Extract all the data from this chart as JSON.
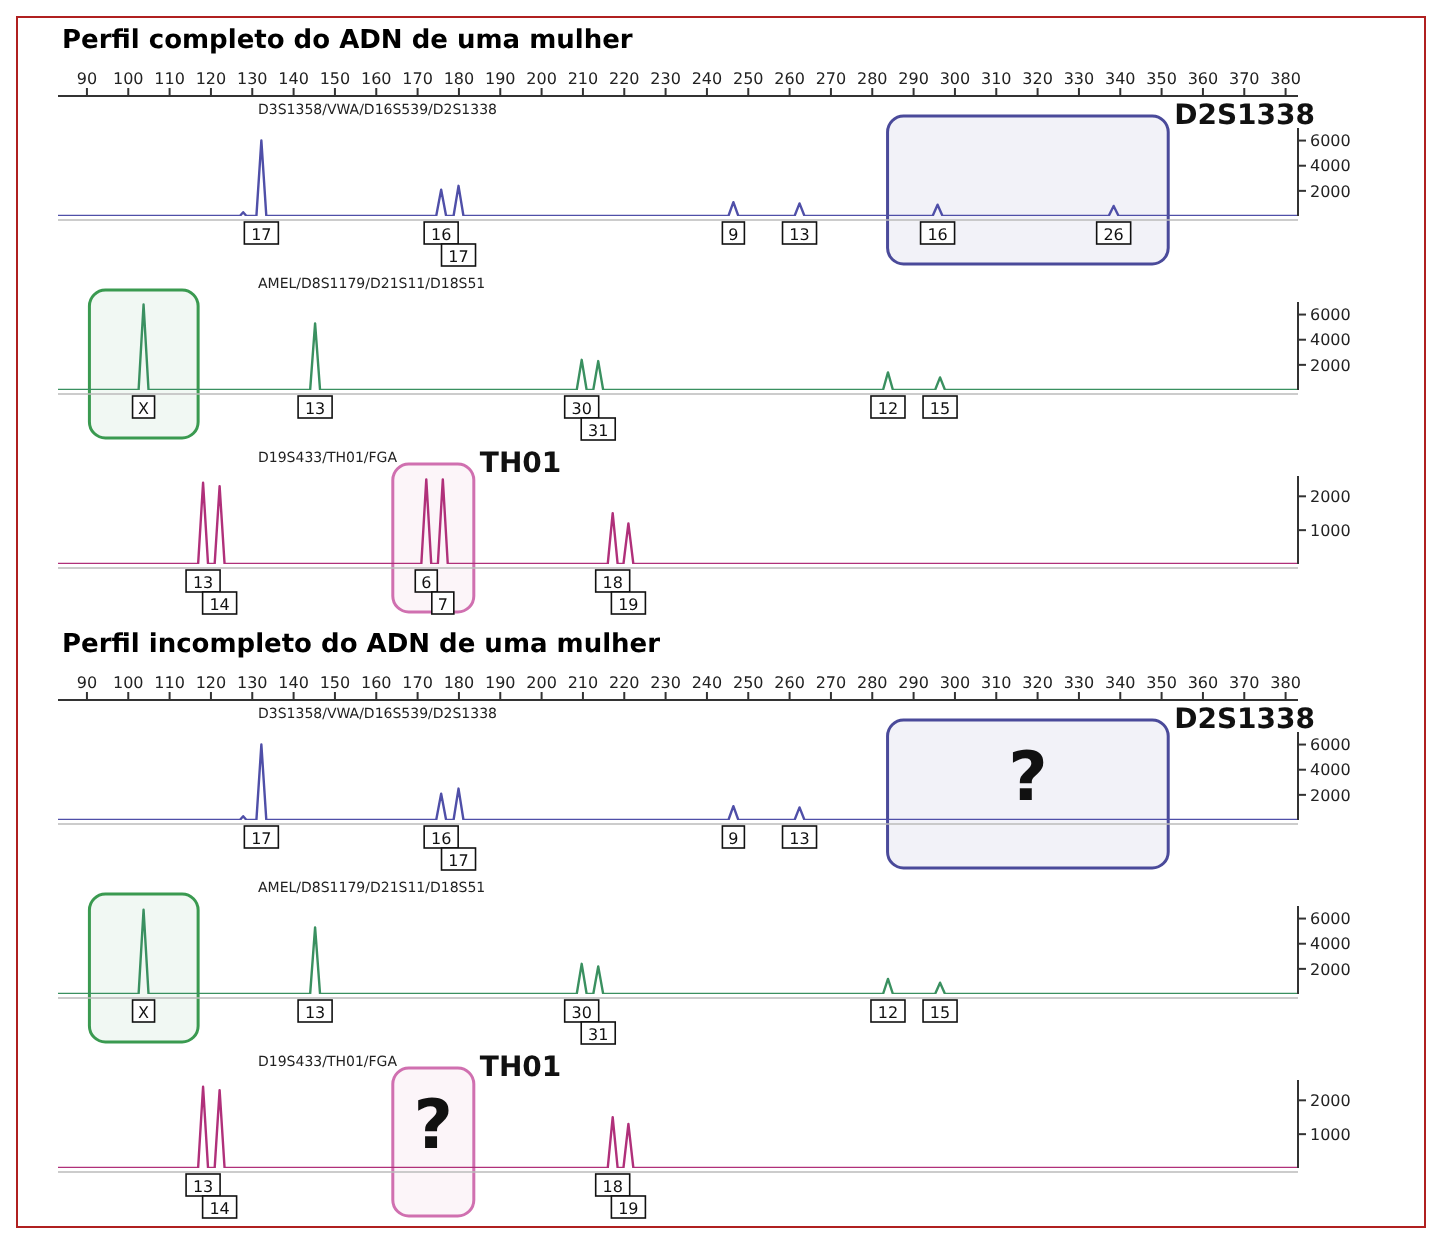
{
  "chart_data": [
    {
      "type": "line",
      "title": "Perfil completo do ADN de uma mulher",
      "xlim": [
        83,
        383
      ],
      "xticks": [
        90,
        100,
        110,
        120,
        130,
        140,
        150,
        160,
        170,
        180,
        190,
        200,
        210,
        220,
        230,
        240,
        250,
        260,
        270,
        280,
        290,
        300,
        310,
        320,
        330,
        340,
        350,
        360,
        370,
        380
      ],
      "ylim": [
        0,
        7000
      ],
      "yticks": [
        2000,
        4000,
        6000
      ],
      "x": [
        83,
        127,
        127.8,
        128.6,
        131,
        132.2,
        133.4,
        174.5,
        175.7,
        176.9,
        178.7,
        179.9,
        181.1,
        245.2,
        246.4,
        247.6,
        261.2,
        262.4,
        263.6,
        294.6,
        295.8,
        297,
        337.2,
        338.4,
        339.6,
        383
      ],
      "series": [
        {
          "color": "#4f4fa8",
          "values": [
            0,
            0,
            300,
            0,
            0,
            6000,
            0,
            0,
            2100,
            0,
            0,
            2400,
            0,
            0,
            1100,
            0,
            0,
            1000,
            0,
            0,
            900,
            0,
            0,
            800,
            0,
            0
          ]
        }
      ],
      "bands": [
        {
          "axis": "x",
          "from": 283.7,
          "to": 351.6,
          "color": "#4a4a9a"
        }
      ],
      "annotations": [
        "D3S1358/VWA/D16S539/D2S1338",
        "D2S1338",
        {
          "text": "17",
          "x": 132.2,
          "y": 0
        },
        {
          "text": "16",
          "x": 175.7,
          "y": 0
        },
        {
          "text": "17",
          "x": 179.9,
          "y": 0
        },
        {
          "text": "9",
          "x": 246.4,
          "y": 0
        },
        {
          "text": "13",
          "x": 262.4,
          "y": 0
        },
        {
          "text": "16",
          "x": 295.8,
          "y": 0
        },
        {
          "text": "26",
          "x": 338.4,
          "y": 0
        }
      ]
    },
    {
      "type": "line",
      "xlim": [
        83,
        383
      ],
      "ylim": [
        0,
        7000
      ],
      "yticks": [
        2000,
        4000,
        6000
      ],
      "tick_labels": "y",
      "x": [
        83,
        102.5,
        103.7,
        104.9,
        144,
        145.2,
        146.4,
        208.5,
        209.7,
        210.9,
        212.5,
        213.7,
        214.9,
        282.6,
        283.8,
        285,
        295.2,
        296.4,
        297.6,
        383
      ],
      "series": [
        {
          "color": "#3a9060",
          "values": [
            0,
            0,
            6800,
            0,
            0,
            5300,
            0,
            0,
            2400,
            0,
            0,
            2300,
            0,
            0,
            1400,
            0,
            0,
            1000,
            0,
            0
          ]
        }
      ],
      "bands": [
        {
          "axis": "x",
          "from": 90.6,
          "to": 116.9,
          "color": "#3a9a50"
        }
      ],
      "annotations": [
        "AMEL/D8S1179/D21S11/D18S51",
        {
          "text": "X",
          "x": 103.7,
          "y": 0
        },
        {
          "text": "13",
          "x": 145.2,
          "y": 0
        },
        {
          "text": "30",
          "x": 209.7,
          "y": 0
        },
        {
          "text": "31",
          "x": 213.7,
          "y": 0
        },
        {
          "text": "12",
          "x": 283.8,
          "y": 0
        },
        {
          "text": "15",
          "x": 296.4,
          "y": 0
        }
      ]
    },
    {
      "type": "line",
      "xlim": [
        83,
        383
      ],
      "ylim": [
        0,
        2600
      ],
      "yticks": [
        1000,
        2000
      ],
      "tick_labels": "y",
      "x": [
        83,
        116.9,
        118.1,
        119.3,
        120.9,
        122.1,
        123.3,
        170.9,
        172.1,
        173.3,
        174.9,
        176.1,
        177.3,
        216,
        217.2,
        218.4,
        219.8,
        221,
        222.2,
        383
      ],
      "series": [
        {
          "color": "#b0307a",
          "values": [
            0,
            0,
            2400,
            0,
            0,
            2300,
            0,
            0,
            2500,
            0,
            0,
            2500,
            0,
            0,
            1500,
            0,
            0,
            1200,
            0,
            0
          ]
        }
      ],
      "bands": [
        {
          "axis": "x",
          "from": 164,
          "to": 183.6,
          "color": "#d070b0"
        }
      ],
      "annotations": [
        "D19S433/TH01/FGA",
        "TH01",
        {
          "text": "13",
          "x": 118.1,
          "y": 0
        },
        {
          "text": "14",
          "x": 122.1,
          "y": 0
        },
        {
          "text": "6",
          "x": 172.1,
          "y": 0
        },
        {
          "text": "7",
          "x": 176.1,
          "y": 0
        },
        {
          "text": "18",
          "x": 217.2,
          "y": 0
        },
        {
          "text": "19",
          "x": 221,
          "y": 0
        }
      ]
    },
    {
      "type": "line",
      "title": "Perfil incompleto do ADN de uma mulher",
      "xlim": [
        83,
        383
      ],
      "xticks": [
        90,
        100,
        110,
        120,
        130,
        140,
        150,
        160,
        170,
        180,
        190,
        200,
        210,
        220,
        230,
        240,
        250,
        260,
        270,
        280,
        290,
        300,
        310,
        320,
        330,
        340,
        350,
        360,
        370,
        380
      ],
      "ylim": [
        0,
        7000
      ],
      "yticks": [
        2000,
        4000,
        6000
      ],
      "x": [
        83,
        127,
        127.8,
        128.6,
        131,
        132.2,
        133.4,
        174.5,
        175.7,
        176.9,
        178.7,
        179.9,
        181.1,
        245.2,
        246.4,
        247.6,
        261.2,
        262.4,
        263.6,
        383
      ],
      "series": [
        {
          "color": "#4f4fa8",
          "values": [
            0,
            0,
            300,
            0,
            0,
            6000,
            0,
            0,
            2100,
            0,
            0,
            2500,
            0,
            0,
            1100,
            0,
            0,
            1000,
            0,
            0
          ]
        }
      ],
      "bands": [
        {
          "axis": "x",
          "from": 283.7,
          "to": 351.6,
          "label": "?",
          "color": "#4a4a9a"
        }
      ],
      "annotations": [
        "D3S1358/VWA/D16S539/D2S1338",
        "D2S1338",
        {
          "text": "17",
          "x": 132.2,
          "y": 0
        },
        {
          "text": "16",
          "x": 175.7,
          "y": 0
        },
        {
          "text": "17",
          "x": 179.9,
          "y": 0
        },
        {
          "text": "9",
          "x": 246.4,
          "y": 0
        },
        {
          "text": "13",
          "x": 262.4,
          "y": 0
        }
      ]
    },
    {
      "type": "line",
      "xlim": [
        83,
        383
      ],
      "ylim": [
        0,
        7000
      ],
      "yticks": [
        2000,
        4000,
        6000
      ],
      "tick_labels": "y",
      "x": [
        83,
        102.5,
        103.7,
        104.9,
        144,
        145.2,
        146.4,
        208.5,
        209.7,
        210.9,
        212.5,
        213.7,
        214.9,
        282.6,
        283.8,
        285,
        295.2,
        296.4,
        297.6,
        383
      ],
      "series": [
        {
          "color": "#3a9060",
          "values": [
            0,
            0,
            6700,
            0,
            0,
            5300,
            0,
            0,
            2400,
            0,
            0,
            2200,
            0,
            0,
            1200,
            0,
            0,
            900,
            0,
            0
          ]
        }
      ],
      "bands": [
        {
          "axis": "x",
          "from": 90.6,
          "to": 116.9,
          "color": "#3a9a50"
        }
      ],
      "annotations": [
        "AMEL/D8S1179/D21S11/D18S51",
        {
          "text": "X",
          "x": 103.7,
          "y": 0
        },
        {
          "text": "13",
          "x": 145.2,
          "y": 0
        },
        {
          "text": "30",
          "x": 209.7,
          "y": 0
        },
        {
          "text": "31",
          "x": 213.7,
          "y": 0
        },
        {
          "text": "12",
          "x": 283.8,
          "y": 0
        },
        {
          "text": "15",
          "x": 296.4,
          "y": 0
        }
      ]
    },
    {
      "type": "line",
      "xlim": [
        83,
        383
      ],
      "ylim": [
        0,
        2600
      ],
      "yticks": [
        1000,
        2000
      ],
      "tick_labels": "y",
      "x": [
        83,
        116.9,
        118.1,
        119.3,
        120.9,
        122.1,
        123.3,
        216,
        217.2,
        218.4,
        219.8,
        221,
        222.2,
        383
      ],
      "series": [
        {
          "color": "#b0307a",
          "values": [
            0,
            0,
            2400,
            0,
            0,
            2300,
            0,
            0,
            1500,
            0,
            0,
            1300,
            0,
            0
          ]
        }
      ],
      "bands": [
        {
          "axis": "x",
          "from": 164,
          "to": 183.6,
          "label": "?",
          "color": "#d070b0"
        }
      ],
      "annotations": [
        "D19S433/TH01/FGA",
        "TH01",
        {
          "text": "13",
          "x": 118.1,
          "y": 0
        },
        {
          "text": "14",
          "x": 122.1,
          "y": 0
        },
        {
          "text": "18",
          "x": 217.2,
          "y": 0
        },
        {
          "text": "19",
          "x": 221,
          "y": 0
        }
      ]
    }
  ]
}
